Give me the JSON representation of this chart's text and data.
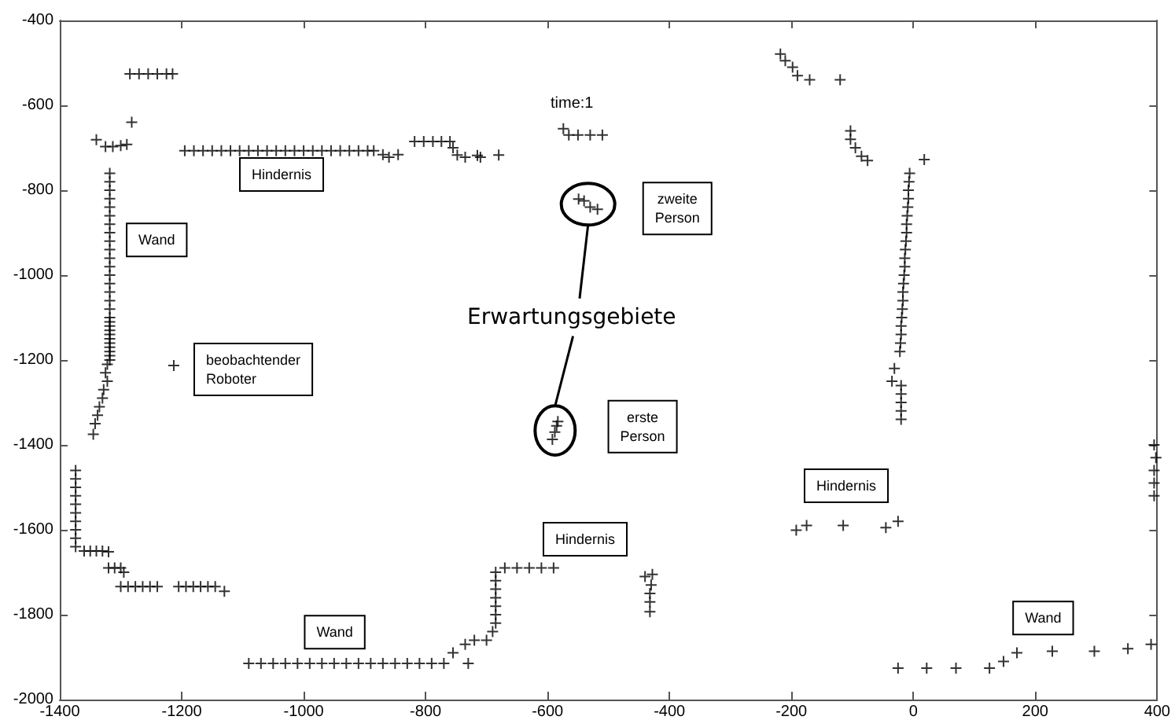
{
  "chart_data": {
    "type": "scatter",
    "title": "time:1",
    "xlim": [
      -1400,
      400
    ],
    "ylim": [
      -2000,
      -400
    ],
    "xticks": [
      -1400,
      -1200,
      -1000,
      -800,
      -600,
      -400,
      -200,
      0,
      200,
      400
    ],
    "yticks": [
      -2000,
      -1800,
      -1600,
      -1400,
      -1200,
      -1000,
      -800,
      -600,
      -400
    ],
    "marker": "cross",
    "series": [
      {
        "color": "#000000",
        "x": [
          -1285,
          -1270,
          -1255,
          -1240,
          -1225,
          -1215,
          -1282,
          -1340,
          -1325,
          -1313,
          -1300,
          -1290,
          -1318,
          -1318,
          -1318,
          -1318,
          -1318,
          -1318,
          -1318,
          -1318,
          -1318,
          -1318,
          -1318,
          -1318,
          -1318,
          -1318,
          -1318,
          -1318,
          -1318,
          -1318,
          -1318,
          -1318,
          -1318,
          -1318,
          -1318,
          -1318,
          -1318,
          -1318,
          -1318,
          -1318,
          -1322,
          -1325,
          -1322,
          -1328,
          -1330,
          -1335,
          -1338,
          -1342,
          -1345,
          -1195,
          -1180,
          -1165,
          -1150,
          -1135,
          -1120,
          -1105,
          -1090,
          -1075,
          -1060,
          -1045,
          -1030,
          -1015,
          -1000,
          -985,
          -970,
          -955,
          -940,
          -925,
          -910,
          -895,
          -885,
          -870,
          -860,
          -845,
          -818,
          -803,
          -788,
          -774,
          -760,
          -755,
          -748,
          -735,
          -715,
          -710,
          -680,
          -574,
          -565,
          -550,
          -530,
          -510,
          -218,
          -210,
          -198,
          -190,
          -170,
          -120,
          -103,
          -103,
          -95,
          -85,
          -75,
          18,
          -6,
          -7,
          -8,
          -8,
          -9,
          -10,
          -11,
          -11,
          -12,
          -13,
          -14,
          -14,
          -15,
          -16,
          -17,
          -17,
          -18,
          -19,
          -20,
          -20,
          -21,
          -22,
          -35,
          -31,
          -20,
          -20,
          -20,
          -20,
          -20,
          395,
          398,
          395,
          395,
          395,
          -192,
          -175,
          -115,
          -45,
          -25,
          -25,
          22,
          70,
          125,
          148,
          170,
          228,
          297,
          352,
          390,
          -440,
          -428,
          -430,
          -432,
          -432,
          -432,
          -1374,
          -1374,
          -1374,
          -1374,
          -1374,
          -1374,
          -1374,
          -1374,
          -1374,
          -1374,
          -1360,
          -1350,
          -1340,
          -1330,
          -1320,
          -1320,
          -1310,
          -1300,
          -1295,
          -1300,
          -1288,
          -1276,
          -1264,
          -1252,
          -1240,
          -1205,
          -1193,
          -1181,
          -1169,
          -1157,
          -1145,
          -1130,
          -1090,
          -1070,
          -1050,
          -1030,
          -1010,
          -990,
          -970,
          -950,
          -930,
          -910,
          -890,
          -870,
          -850,
          -830,
          -810,
          -790,
          -770,
          -755,
          -730,
          -735,
          -720,
          -700,
          -690,
          -685,
          -685,
          -685,
          -685,
          -685,
          -685,
          -685,
          -670,
          -650,
          -630,
          -610,
          -590
        ],
        "values": [
          -526,
          -526,
          -526,
          -526,
          -526,
          -526,
          -640,
          -681,
          -697,
          -697,
          -695,
          -692,
          -760,
          -780,
          -800,
          -820,
          -840,
          -860,
          -880,
          -900,
          -920,
          -940,
          -960,
          -980,
          -1000,
          -1020,
          -1040,
          -1060,
          -1080,
          -1100,
          -1110,
          -1120,
          -1130,
          -1140,
          -1150,
          -1160,
          -1170,
          -1180,
          -1190,
          -1200,
          -1210,
          -1230,
          -1250,
          -1270,
          -1290,
          -1310,
          -1330,
          -1350,
          -1375,
          -707,
          -707,
          -707,
          -707,
          -707,
          -707,
          -707,
          -707,
          -707,
          -707,
          -707,
          -707,
          -707,
          -707,
          -707,
          -707,
          -707,
          -707,
          -707,
          -707,
          -707,
          -707,
          -716,
          -722,
          -716,
          -685,
          -685,
          -685,
          -685,
          -685,
          -700,
          -717,
          -722,
          -718,
          -722,
          -717,
          -655,
          -670,
          -670,
          -670,
          -670,
          -479,
          -495,
          -510,
          -530,
          -540,
          -540,
          -660,
          -680,
          -700,
          -720,
          -730,
          -728,
          -760,
          -780,
          -800,
          -820,
          -840,
          -860,
          -880,
          -900,
          -920,
          -940,
          -960,
          -980,
          -1000,
          -1020,
          -1040,
          -1060,
          -1080,
          -1100,
          -1120,
          -1140,
          -1160,
          -1180,
          -1250,
          -1220,
          -1260,
          -1280,
          -1300,
          -1320,
          -1340,
          -1400,
          -1430,
          -1460,
          -1490,
          -1520,
          -1601,
          -1590,
          -1590,
          -1595,
          -1580,
          -1926,
          -1926,
          -1926,
          -1926,
          -1910,
          -1890,
          -1886,
          -1886,
          -1880,
          -1870,
          -1710,
          -1705,
          -1730,
          -1750,
          -1770,
          -1793,
          -1460,
          -1480,
          -1500,
          -1520,
          -1540,
          -1560,
          -1580,
          -1600,
          -1620,
          -1640,
          -1650,
          -1650,
          -1650,
          -1650,
          -1652,
          -1690,
          -1690,
          -1690,
          -1700,
          -1734,
          -1734,
          -1734,
          -1734,
          -1734,
          -1734,
          -1734,
          -1734,
          -1734,
          -1734,
          -1734,
          -1734,
          -1745,
          -1915,
          -1915,
          -1915,
          -1915,
          -1915,
          -1915,
          -1915,
          -1915,
          -1915,
          -1915,
          -1915,
          -1915,
          -1915,
          -1915,
          -1915,
          -1915,
          -1915,
          -1890,
          -1915,
          -1870,
          -1860,
          -1860,
          -1840,
          -1820,
          -1800,
          -1780,
          -1760,
          -1740,
          -1720,
          -1700,
          -1690,
          -1690,
          -1690,
          -1690,
          -1690
        ]
      },
      {
        "color": "#000000",
        "x": [
          -1213
        ],
        "values": [
          -1213
        ]
      },
      {
        "color": "#000000",
        "x": [
          -549,
          -540,
          -530,
          -518
        ],
        "values": [
          -821,
          -825,
          -840,
          -845
        ]
      },
      {
        "color": "#000000",
        "x": [
          -592,
          -588,
          -585,
          -583
        ],
        "values": [
          -1387,
          -1370,
          -1355,
          -1345
        ]
      }
    ],
    "annotations": [
      "Hindernis",
      {
        "text": "Wand",
        "x": -1241,
        "y": -917
      },
      "beobachtender\nRoboter",
      {
        "text": "zweite\nPerson",
        "x": -387,
        "y": -843
      },
      {
        "text": "erste\nPerson",
        "x": -444,
        "y": -1357
      },
      "Hindernis",
      "Hindernis",
      {
        "text": "Wand",
        "x": -949,
        "y": -1841
      },
      {
        "text": "Wand",
        "x": 213,
        "y": -1808
      },
      "Erwartungsgebiete"
    ]
  }
}
